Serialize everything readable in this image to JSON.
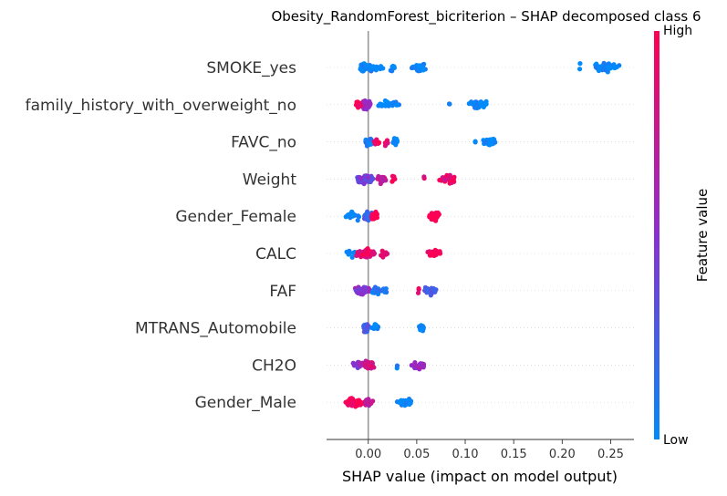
{
  "chart_data": {
    "type": "scatter",
    "title": "Obesity_RandomForest_bicriterion – SHAP decomposed class 6",
    "xlabel": "SHAP value (impact on model output)",
    "xlim": [
      -0.043,
      0.274
    ],
    "xticks": [
      {
        "value": 0.0,
        "label": "0.00"
      },
      {
        "value": 0.05,
        "label": "0.05"
      },
      {
        "value": 0.1,
        "label": "0.10"
      },
      {
        "value": 0.15,
        "label": "0.15"
      },
      {
        "value": 0.2,
        "label": "0.20"
      },
      {
        "value": 0.25,
        "label": "0.25"
      }
    ],
    "colorbar": {
      "label": "Feature value",
      "high_label": "High",
      "low_label": "Low",
      "low_color": "#008bfb",
      "mid_color": "#8b2fd1",
      "high_color": "#ff0052"
    },
    "zero_line_color": "#999999",
    "features": [
      {
        "name": "SMOKE_yes",
        "points": [
          {
            "x": -0.005,
            "n": 60,
            "spread": 0.004,
            "c": 0.0
          },
          {
            "x": 0.002,
            "n": 12,
            "spread": 0.01,
            "c": 0.05
          },
          {
            "x": 0.012,
            "n": 6,
            "spread": 0.006,
            "c": 0.0
          },
          {
            "x": 0.025,
            "n": 6,
            "spread": 0.006,
            "c": 0.0
          },
          {
            "x": 0.053,
            "n": 30,
            "spread": 0.009,
            "c": 0.0
          },
          {
            "x": 0.218,
            "n": 2,
            "spread": 0.002,
            "c": 0.0
          },
          {
            "x": 0.245,
            "n": 60,
            "spread": 0.018,
            "c": 0.0
          }
        ]
      },
      {
        "name": "family_history_with_overweight_no",
        "points": [
          {
            "x": -0.003,
            "n": 70,
            "spread": 0.008,
            "c": 0.6
          },
          {
            "x": -0.01,
            "n": 12,
            "spread": 0.004,
            "c": 1.0
          },
          {
            "x": 0.02,
            "n": 30,
            "spread": 0.015,
            "c": 0.0
          },
          {
            "x": 0.084,
            "n": 2,
            "spread": 0.001,
            "c": 0.0
          },
          {
            "x": 0.112,
            "n": 40,
            "spread": 0.014,
            "c": 0.0
          }
        ]
      },
      {
        "name": "FAVC_no",
        "points": [
          {
            "x": 0.0,
            "n": 50,
            "spread": 0.006,
            "c": 0.1
          },
          {
            "x": 0.008,
            "n": 14,
            "spread": 0.004,
            "c": 1.0
          },
          {
            "x": 0.018,
            "n": 5,
            "spread": 0.005,
            "c": 0.9
          },
          {
            "x": 0.028,
            "n": 14,
            "spread": 0.005,
            "c": 0.0
          },
          {
            "x": 0.11,
            "n": 2,
            "spread": 0.001,
            "c": 0.0
          },
          {
            "x": 0.124,
            "n": 30,
            "spread": 0.01,
            "c": 0.0
          }
        ]
      },
      {
        "name": "Weight",
        "points": [
          {
            "x": -0.004,
            "n": 70,
            "spread": 0.012,
            "c": 0.4
          },
          {
            "x": 0.014,
            "n": 24,
            "spread": 0.008,
            "c": 0.75
          },
          {
            "x": 0.026,
            "n": 6,
            "spread": 0.004,
            "c": 0.95
          },
          {
            "x": 0.058,
            "n": 2,
            "spread": 0.001,
            "c": 0.9
          },
          {
            "x": 0.082,
            "n": 36,
            "spread": 0.01,
            "c": 0.9
          }
        ]
      },
      {
        "name": "Gender_Female",
        "points": [
          {
            "x": -0.016,
            "n": 14,
            "spread": 0.012,
            "c": 0.0
          },
          {
            "x": 0.0,
            "n": 40,
            "spread": 0.006,
            "c": 0.2
          },
          {
            "x": 0.006,
            "n": 20,
            "spread": 0.006,
            "c": 1.0
          },
          {
            "x": 0.068,
            "n": 40,
            "spread": 0.009,
            "c": 1.0
          }
        ]
      },
      {
        "name": "CALC",
        "points": [
          {
            "x": -0.018,
            "n": 10,
            "spread": 0.01,
            "c": 0.0
          },
          {
            "x": -0.002,
            "n": 60,
            "spread": 0.012,
            "c": 0.9
          },
          {
            "x": 0.016,
            "n": 8,
            "spread": 0.006,
            "c": 0.95
          },
          {
            "x": 0.068,
            "n": 40,
            "spread": 0.01,
            "c": 1.0
          }
        ]
      },
      {
        "name": "FAF",
        "points": [
          {
            "x": -0.006,
            "n": 50,
            "spread": 0.01,
            "c": 0.5
          },
          {
            "x": 0.008,
            "n": 20,
            "spread": 0.008,
            "c": 0.1
          },
          {
            "x": 0.017,
            "n": 5,
            "spread": 0.004,
            "c": 0.0
          },
          {
            "x": 0.052,
            "n": 3,
            "spread": 0.002,
            "c": 0.85
          },
          {
            "x": 0.064,
            "n": 30,
            "spread": 0.008,
            "c": 0.3
          }
        ]
      },
      {
        "name": "MTRANS_Automobile",
        "points": [
          {
            "x": -0.002,
            "n": 40,
            "spread": 0.004,
            "c": 0.25
          },
          {
            "x": 0.008,
            "n": 14,
            "spread": 0.006,
            "c": 0.0
          },
          {
            "x": 0.055,
            "n": 26,
            "spread": 0.004,
            "c": 0.0
          }
        ]
      },
      {
        "name": "CH2O",
        "points": [
          {
            "x": -0.012,
            "n": 14,
            "spread": 0.008,
            "c": 0.5
          },
          {
            "x": 0.0,
            "n": 50,
            "spread": 0.008,
            "c": 0.8
          },
          {
            "x": 0.03,
            "n": 2,
            "spread": 0.001,
            "c": 0.0
          },
          {
            "x": 0.053,
            "n": 30,
            "spread": 0.009,
            "c": 0.55
          }
        ]
      },
      {
        "name": "Gender_Male",
        "points": [
          {
            "x": -0.014,
            "n": 50,
            "spread": 0.014,
            "c": 1.0
          },
          {
            "x": 0.0,
            "n": 20,
            "spread": 0.006,
            "c": 0.7
          },
          {
            "x": 0.038,
            "n": 40,
            "spread": 0.009,
            "c": 0.0
          }
        ]
      }
    ]
  }
}
